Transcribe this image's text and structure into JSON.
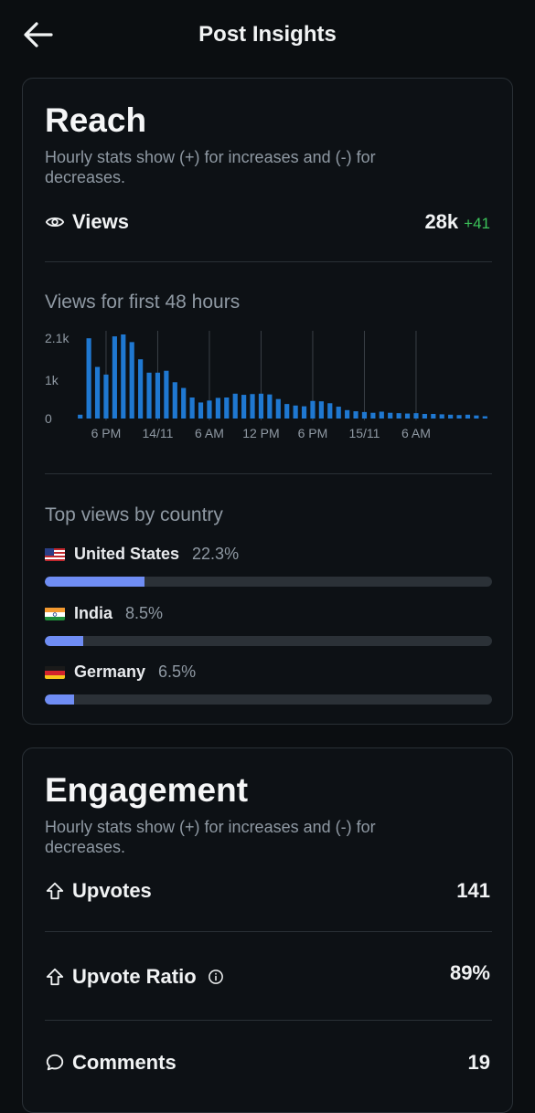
{
  "header": {
    "title": "Post Insights",
    "back_icon": "arrow-left-icon"
  },
  "reach": {
    "title": "Reach",
    "subtitle": "Hourly stats show (+) for increases and (-) for decreases.",
    "views_label": "Views",
    "views_value": "28k",
    "views_delta": "+41",
    "chart_title": "Views for first 48 hours",
    "top_countries_title": "Top views by country",
    "countries": [
      {
        "flag": "us",
        "name": "United States",
        "pct_text": "22.3%",
        "pct": 22.3
      },
      {
        "flag": "in",
        "name": "India",
        "pct_text": "8.5%",
        "pct": 8.5
      },
      {
        "flag": "de",
        "name": "Germany",
        "pct_text": "6.5%",
        "pct": 6.5
      }
    ]
  },
  "engagement": {
    "title": "Engagement",
    "subtitle": "Hourly stats show (+) for increases and (-) for decreases.",
    "upvotes_label": "Upvotes",
    "upvotes_value": "141",
    "ratio_label": "Upvote Ratio",
    "ratio_value": "89%",
    "comments_label": "Comments",
    "comments_value": "19"
  },
  "chart_data": {
    "type": "bar",
    "title": "Views for first 48 hours",
    "y_tick_labels": [
      "2.1k",
      "1k",
      "0"
    ],
    "y_ticks": [
      2100,
      1000,
      0
    ],
    "ylim": [
      0,
      2200
    ],
    "x_tick_labels": [
      "6 PM",
      "14/11",
      "6 AM",
      "12 PM",
      "6 PM",
      "15/11",
      "6 AM"
    ],
    "x_tick_index": [
      3,
      9,
      15,
      21,
      27,
      33,
      39
    ],
    "values": [
      100,
      2100,
      1350,
      1150,
      2150,
      2200,
      2000,
      1550,
      1200,
      1200,
      1250,
      950,
      800,
      550,
      420,
      470,
      540,
      550,
      650,
      620,
      640,
      650,
      630,
      510,
      380,
      340,
      320,
      460,
      450,
      400,
      310,
      220,
      190,
      170,
      150,
      180,
      150,
      140,
      130,
      140,
      120,
      120,
      110,
      100,
      90,
      100,
      80,
      60
    ],
    "bar_color": "#1f78d1",
    "grid": "vertical lines at x ticks"
  }
}
